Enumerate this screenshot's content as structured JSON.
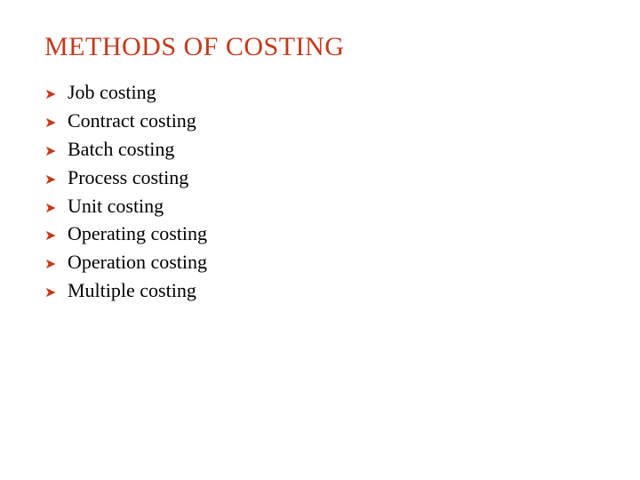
{
  "title": "METHODS OF COSTING",
  "title_color": "#c43a1c",
  "title_fontsize": 30,
  "bullet_glyph": "➤",
  "bullet_color": "#c43a1c",
  "bullet_fontsize": 16,
  "item_color": "#000000",
  "item_fontsize": 22,
  "background_color": "#ffffff",
  "items": [
    "Job costing",
    "Contract costing",
    "Batch costing",
    "Process costing",
    "Unit costing",
    "Operating costing",
    "Operation costing",
    "Multiple costing"
  ]
}
